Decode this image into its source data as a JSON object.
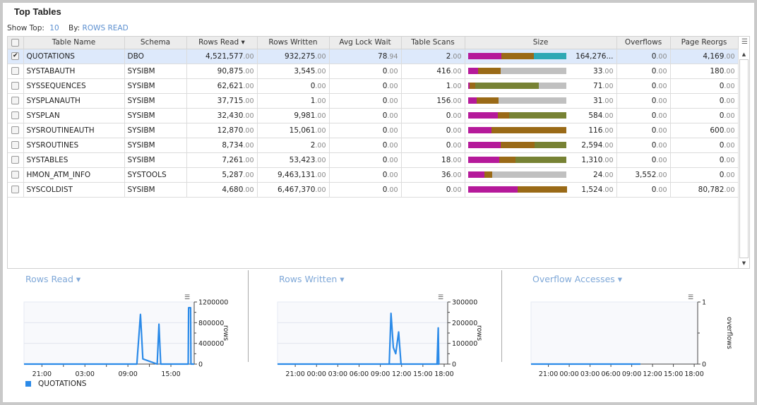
{
  "title": "Top Tables",
  "show_top_label": "Show Top:",
  "show_top_value": "10",
  "by_label": "By:",
  "by_value": "ROWS READ",
  "colors": {
    "magenta": "#b5199a",
    "brown": "#9a6a17",
    "teal": "#2ea8b5",
    "olive": "#778234",
    "gray": "#c0c0c0",
    "series": "#2b8ae8",
    "selected_row": "#dde9fb"
  },
  "columns": [
    "",
    "Table Name",
    "Schema",
    "Rows Read ▾",
    "Rows Written",
    "Avg Lock Wait",
    "Table Scans",
    "Size",
    "Overflows",
    "Page Reorgs"
  ],
  "rows": [
    {
      "checked": true,
      "name": "QUOTATIONS",
      "schema": "DBO",
      "rows_read": "4,521,577.00",
      "rows_written": "932,275.00",
      "avg_lock_wait": "78.94",
      "table_scans": "2.00",
      "size": "164,276...",
      "size_bar": [
        [
          "magenta",
          0.34
        ],
        [
          "brown",
          0.33
        ],
        [
          "teal",
          0.33
        ]
      ],
      "overflows": "0.00",
      "page_reorgs": "4,169.00"
    },
    {
      "checked": false,
      "name": "SYSTABAUTH",
      "schema": "SYSIBM",
      "rows_read": "90,875.00",
      "rows_written": "3,545.00",
      "avg_lock_wait": "0.00",
      "table_scans": "416.00",
      "size": "33.00",
      "size_bar": [
        [
          "magenta",
          0.105
        ],
        [
          "brown",
          0.23
        ],
        [
          "gray",
          0.665
        ]
      ],
      "overflows": "0.00",
      "page_reorgs": "180.00"
    },
    {
      "checked": false,
      "name": "SYSSEQUENCES",
      "schema": "SYSIBM",
      "rows_read": "62,621.00",
      "rows_written": "0.00",
      "avg_lock_wait": "0.00",
      "table_scans": "1.00",
      "size": "71.00",
      "size_bar": [
        [
          "magenta",
          0.015
        ],
        [
          "brown",
          0.06
        ],
        [
          "olive",
          0.64
        ],
        [
          "gray",
          0.285
        ]
      ],
      "overflows": "0.00",
      "page_reorgs": "0.00"
    },
    {
      "checked": false,
      "name": "SYSPLANAUTH",
      "schema": "SYSIBM",
      "rows_read": "37,715.00",
      "rows_written": "1.00",
      "avg_lock_wait": "0.00",
      "table_scans": "156.00",
      "size": "31.00",
      "size_bar": [
        [
          "magenta",
          0.09
        ],
        [
          "brown",
          0.22
        ],
        [
          "gray",
          0.69
        ]
      ],
      "overflows": "0.00",
      "page_reorgs": "0.00"
    },
    {
      "checked": false,
      "name": "SYSPLAN",
      "schema": "SYSIBM",
      "rows_read": "32,430.00",
      "rows_written": "9,981.00",
      "avg_lock_wait": "0.00",
      "table_scans": "0.00",
      "size": "584.00",
      "size_bar": [
        [
          "magenta",
          0.3
        ],
        [
          "brown",
          0.12
        ],
        [
          "olive",
          0.58
        ]
      ],
      "overflows": "0.00",
      "page_reorgs": "0.00"
    },
    {
      "checked": false,
      "name": "SYSROUTINEAUTH",
      "schema": "SYSIBM",
      "rows_read": "12,870.00",
      "rows_written": "15,061.00",
      "avg_lock_wait": "0.00",
      "table_scans": "0.00",
      "size": "116.00",
      "size_bar": [
        [
          "magenta",
          0.24
        ],
        [
          "brown",
          0.76
        ]
      ],
      "overflows": "0.00",
      "page_reorgs": "600.00"
    },
    {
      "checked": false,
      "name": "SYSROUTINES",
      "schema": "SYSIBM",
      "rows_read": "8,734.00",
      "rows_written": "2.00",
      "avg_lock_wait": "0.00",
      "table_scans": "0.00",
      "size": "2,594.00",
      "size_bar": [
        [
          "magenta",
          0.335
        ],
        [
          "brown",
          0.34
        ],
        [
          "olive",
          0.325
        ]
      ],
      "overflows": "0.00",
      "page_reorgs": "0.00"
    },
    {
      "checked": false,
      "name": "SYSTABLES",
      "schema": "SYSIBM",
      "rows_read": "7,261.00",
      "rows_written": "53,423.00",
      "avg_lock_wait": "0.00",
      "table_scans": "18.00",
      "size": "1,310.00",
      "size_bar": [
        [
          "magenta",
          0.32
        ],
        [
          "brown",
          0.165
        ],
        [
          "olive",
          0.515
        ]
      ],
      "overflows": "0.00",
      "page_reorgs": "0.00"
    },
    {
      "checked": false,
      "name": "HMON_ATM_INFO",
      "schema": "SYSTOOLS",
      "rows_read": "5,287.00",
      "rows_written": "9,463,131.00",
      "avg_lock_wait": "0.00",
      "table_scans": "36.00",
      "size": "24.00",
      "size_bar": [
        [
          "magenta",
          0.165
        ],
        [
          "brown",
          0.08
        ],
        [
          "gray",
          0.755
        ]
      ],
      "overflows": "3,552.00",
      "page_reorgs": "0.00"
    },
    {
      "checked": false,
      "name": "SYSCOLDIST",
      "schema": "SYSIBM",
      "rows_read": "4,680.00",
      "rows_written": "6,467,370.00",
      "avg_lock_wait": "0.00",
      "table_scans": "0.00",
      "size": "1,524.00",
      "size_bar": [
        [
          "magenta",
          0.5
        ],
        [
          "brown",
          0.5
        ]
      ],
      "overflows": "0.00",
      "page_reorgs": "80,782.00"
    }
  ],
  "legend": "QUOTATIONS",
  "chart_data": [
    {
      "type": "line",
      "title": "Rows Read",
      "ylabel": "rows",
      "ylim": [
        0,
        1200000
      ],
      "yticks": [
        "0",
        "400000",
        "800000",
        "1200000"
      ],
      "xlim": [
        "18:30",
        "18:15"
      ],
      "xticks": [
        "21:00",
        "",
        "03:00",
        "",
        "09:00",
        "",
        "15:00"
      ],
      "xtick_times": [
        "21:00",
        "00:00",
        "03:00",
        "06:00",
        "09:00",
        "12:00",
        "15:00"
      ],
      "grid": true,
      "legend": "bottom-left",
      "series": [
        {
          "name": "QUOTATIONS",
          "x": [
            "18:30",
            "10:15",
            "10:45",
            "11:05",
            "13:05",
            "13:20",
            "13:35",
            "17:25",
            "17:28",
            "17:45",
            "17:48",
            "18:15"
          ],
          "y": [
            0,
            0,
            960000,
            100000,
            0,
            770000,
            0,
            0,
            1090000,
            1090000,
            0,
            0
          ]
        }
      ]
    },
    {
      "type": "line",
      "title": "Rows Written",
      "ylabel": "rows",
      "ylim": [
        0,
        300000
      ],
      "yticks": [
        "0",
        "100000",
        "200000",
        "300000"
      ],
      "xlim": [
        "18:30",
        "18:30"
      ],
      "xticks": [
        "21:00",
        "00:00",
        "03:00",
        "06:00",
        "09:00",
        "12:00",
        "15:00",
        "18:00"
      ],
      "grid": true,
      "series": [
        {
          "name": "QUOTATIONS",
          "x": [
            "18:30",
            "10:15",
            "10:30",
            "10:50",
            "11:10",
            "11:35",
            "11:55",
            "17:00",
            "17:10",
            "17:15",
            "18:30"
          ],
          "y": [
            0,
            0,
            245000,
            80000,
            50000,
            155000,
            0,
            0,
            175000,
            0,
            0
          ]
        }
      ]
    },
    {
      "type": "line",
      "title": "Overflow Accesses",
      "ylabel": "overflows",
      "ylim": [
        0,
        1
      ],
      "yticks": [
        "0",
        "1"
      ],
      "xlim": [
        "18:30",
        "18:30"
      ],
      "xticks": [
        "21:00",
        "00:00",
        "03:00",
        "06:00",
        "09:00",
        "12:00",
        "15:00",
        "18:00"
      ],
      "grid": true,
      "series": [
        {
          "name": "QUOTATIONS",
          "x": [
            "10:15",
            "18:30"
          ],
          "y": [
            0,
            0
          ]
        }
      ]
    }
  ]
}
